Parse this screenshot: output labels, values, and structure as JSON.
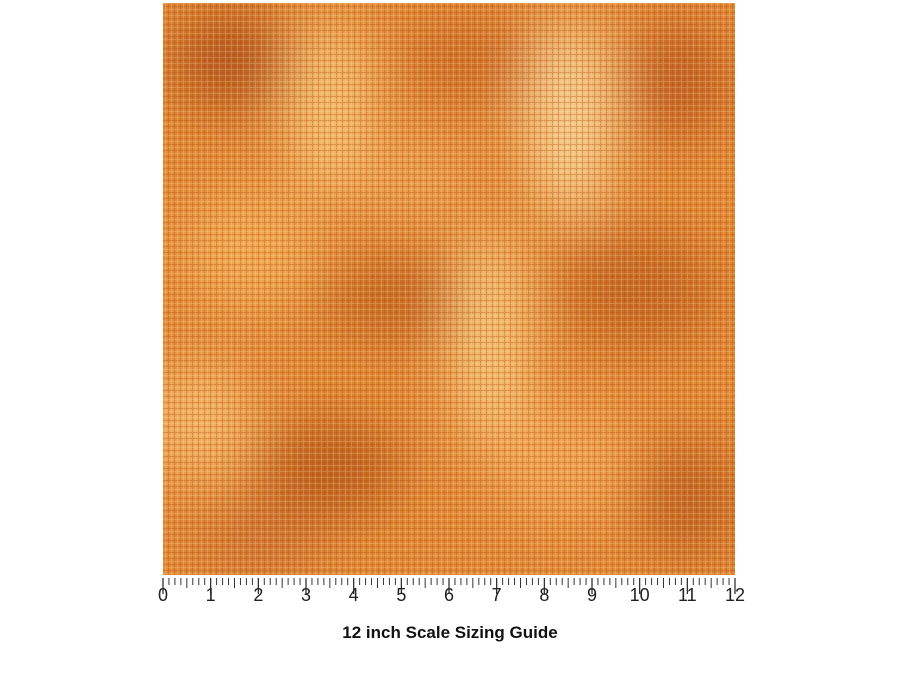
{
  "ruler": {
    "labels": [
      0,
      1,
      2,
      3,
      4,
      5,
      6,
      7,
      8,
      9,
      10,
      11,
      12
    ]
  },
  "caption": "12 inch Scale Sizing Guide"
}
